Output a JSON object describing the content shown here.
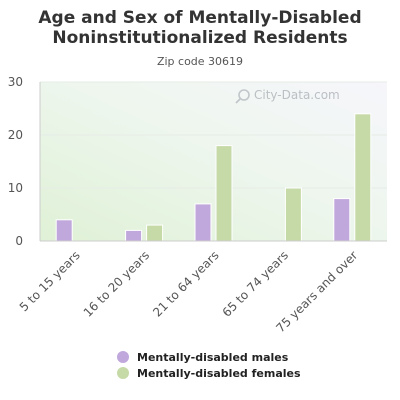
{
  "chart_data": {
    "type": "bar",
    "title_lines": [
      "Age and Sex of Mentally-Disabled",
      "Noninstitutionalized Residents"
    ],
    "subtitle": "Zip code 30619",
    "categories": [
      "5 to 15 years",
      "16 to 20 years",
      "21 to 64 years",
      "65 to 74 years",
      "75 years and over"
    ],
    "series": [
      {
        "name": "Mentally-disabled males",
        "color": "#c0a8dc",
        "values": [
          4,
          2,
          7,
          0,
          8
        ]
      },
      {
        "name": "Mentally-disabled females",
        "color": "#c6daa8",
        "values": [
          0,
          3,
          18,
          10,
          24
        ]
      }
    ],
    "ylim": [
      0,
      30
    ],
    "yticks": [
      0,
      10,
      20,
      30
    ],
    "grid": true,
    "legend_position": "bottom",
    "watermark": "City-Data.com"
  }
}
